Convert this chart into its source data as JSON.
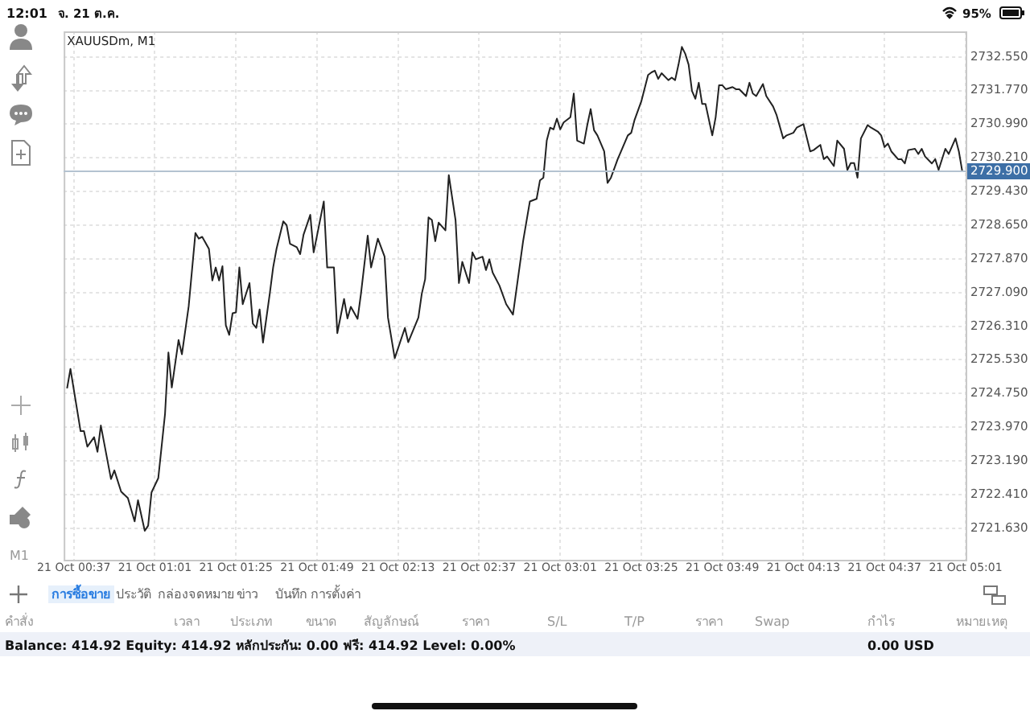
{
  "chart_data": {
    "type": "line",
    "title": "XAUUSDm, M1",
    "x": [
      "--10-21T00:35",
      "--10-21T00:36",
      "--10-21T00:39",
      "--10-21T00:40",
      "--10-21T00:41",
      "--10-21T00:43",
      "--10-21T00:44",
      "--10-21T00:45",
      "--10-21T00:48",
      "--10-21T00:49",
      "--10-21T00:51",
      "--10-21T00:53",
      "--10-21T00:55",
      "--10-21T00:56",
      "--10-21T00:58",
      "--10-21T00:59",
      "--10-21T01:00",
      "--10-21T01:02",
      "--10-21T01:04",
      "--10-21T01:05",
      "--10-21T01:06",
      "--10-21T01:08",
      "--10-21T01:09",
      "--10-21T01:11",
      "--10-21T01:13",
      "--10-21T01:14",
      "--10-21T01:15",
      "--10-21T01:17",
      "--10-21T01:18",
      "--10-21T01:19",
      "--10-21T01:20",
      "--10-21T01:21",
      "--10-21T01:22",
      "--10-21T01:23",
      "--10-21T01:24",
      "--10-21T01:25",
      "--10-21T01:26",
      "--10-21T01:27",
      "--10-21T01:29",
      "--10-21T01:30",
      "--10-21T01:31",
      "--10-21T01:32",
      "--10-21T01:33",
      "--10-21T01:35",
      "--10-21T01:36",
      "--10-21T01:37",
      "--10-21T01:39",
      "--10-21T01:40",
      "--10-21T01:41",
      "--10-21T01:43",
      "--10-21T01:44",
      "--10-21T01:45",
      "--10-21T01:47",
      "--10-21T01:48",
      "--10-21T01:51",
      "--10-21T01:52",
      "--10-21T01:54",
      "--10-21T01:55",
      "--10-21T01:57",
      "--10-21T01:58",
      "--10-21T01:59",
      "--10-21T02:01",
      "--10-21T02:02",
      "--10-21T02:04",
      "--10-21T02:05",
      "--10-21T02:07",
      "--10-21T02:09",
      "--10-21T02:10",
      "--10-21T02:12",
      "--10-21T02:15",
      "--10-21T02:16",
      "--10-21T02:19",
      "--10-21T02:20",
      "--10-21T02:21",
      "--10-21T02:22",
      "--10-21T02:23",
      "--10-21T02:24",
      "--10-21T02:25",
      "--10-21T02:27",
      "--10-21T02:28",
      "--10-21T02:30",
      "--10-21T02:31",
      "--10-21T02:32",
      "--10-21T02:34",
      "--10-21T02:35",
      "--10-21T02:36",
      "--10-21T02:38",
      "--10-21T02:39",
      "--10-21T02:40",
      "--10-21T02:41",
      "--10-21T02:43",
      "--10-21T02:45",
      "--10-21T02:47",
      "--10-21T02:50",
      "--10-21T02:52",
      "--10-21T02:54",
      "--10-21T02:55",
      "--10-21T02:56",
      "--10-21T02:57",
      "--10-21T02:58",
      "--10-21T02:59",
      "--10-21T03:00",
      "--10-21T03:01",
      "--10-21T03:02",
      "--10-21T03:04",
      "--10-21T03:05",
      "--10-21T03:06",
      "--10-21T03:08",
      "--10-21T03:09",
      "--10-21T03:10",
      "--10-21T03:11",
      "--10-21T03:12",
      "--10-21T03:14",
      "--10-21T03:15",
      "--10-21T03:16",
      "--10-21T03:18",
      "--10-21T03:19",
      "--10-21T03:21",
      "--10-21T03:22",
      "--10-21T03:23",
      "--10-21T03:25",
      "--10-21T03:27",
      "--10-21T03:28",
      "--10-21T03:29",
      "--10-21T03:30",
      "--10-21T03:31",
      "--10-21T03:33",
      "--10-21T03:34",
      "--10-21T03:35",
      "--10-21T03:36",
      "--10-21T03:37",
      "--10-21T03:38",
      "--10-21T03:39",
      "--10-21T03:40",
      "--10-21T03:41",
      "--10-21T03:42",
      "--10-21T03:43",
      "--10-21T03:44",
      "--10-21T03:46",
      "--10-21T03:47",
      "--10-21T03:48",
      "--10-21T03:49",
      "--10-21T03:50",
      "--10-21T03:52",
      "--10-21T03:53",
      "--10-21T03:54",
      "--10-21T03:56",
      "--10-21T03:57",
      "--10-21T03:58",
      "--10-21T03:59",
      "--10-21T04:01",
      "--10-21T04:02",
      "--10-21T04:04",
      "--10-21T04:05",
      "--10-21T04:07",
      "--10-21T04:08",
      "--10-21T04:10",
      "--10-21T04:11",
      "--10-21T04:13",
      "--10-21T04:15",
      "--10-21T04:16",
      "--10-21T04:18",
      "--10-21T04:19",
      "--10-21T04:20",
      "--10-21T04:22",
      "--10-21T04:23",
      "--10-21T04:25",
      "--10-21T04:26",
      "--10-21T04:27",
      "--10-21T04:28",
      "--10-21T04:29",
      "--10-21T04:30",
      "--10-21T04:32",
      "--10-21T04:33",
      "--10-21T04:35",
      "--10-21T04:36",
      "--10-21T04:37",
      "--10-21T04:38",
      "--10-21T04:39",
      "--10-21T04:41",
      "--10-21T04:42",
      "--10-21T04:43",
      "--10-21T04:44",
      "--10-21T04:46",
      "--10-21T04:47",
      "--10-21T04:48",
      "--10-21T04:49",
      "--10-21T04:51",
      "--10-21T04:52",
      "--10-21T04:53",
      "--10-21T04:55",
      "--10-21T04:56",
      "--10-21T04:58",
      "--10-21T04:59",
      "--10-21T05:00"
    ],
    "series": [
      {
        "color": "#222222",
        "values": [
          2724.87,
          2725.32,
          2723.88,
          2723.88,
          2723.52,
          2723.74,
          2723.4,
          2724.01,
          2722.77,
          2722.97,
          2722.48,
          2722.33,
          2721.79,
          2722.28,
          2721.57,
          2721.69,
          2722.46,
          2722.79,
          2724.28,
          2725.7,
          2724.89,
          2725.99,
          2725.66,
          2726.77,
          2728.47,
          2728.34,
          2728.38,
          2728.1,
          2727.37,
          2727.67,
          2727.37,
          2727.7,
          2726.33,
          2726.11,
          2726.61,
          2726.63,
          2727.67,
          2726.82,
          2727.31,
          2726.37,
          2726.27,
          2726.7,
          2725.93,
          2727.06,
          2727.67,
          2728.1,
          2728.74,
          2728.65,
          2728.22,
          2728.14,
          2727.98,
          2728.43,
          2728.89,
          2728.02,
          2729.2,
          2727.67,
          2727.67,
          2726.15,
          2726.94,
          2726.49,
          2726.76,
          2726.48,
          2727.06,
          2728.41,
          2727.67,
          2728.34,
          2727.92,
          2726.51,
          2725.57,
          2726.27,
          2725.94,
          2726.51,
          2727.06,
          2727.4,
          2728.83,
          2728.77,
          2728.28,
          2728.71,
          2728.53,
          2729.81,
          2728.77,
          2727.31,
          2727.8,
          2727.31,
          2728.02,
          2727.86,
          2727.92,
          2727.61,
          2727.86,
          2727.55,
          2727.25,
          2726.82,
          2726.58,
          2728.28,
          2729.2,
          2729.26,
          2729.69,
          2729.75,
          2730.61,
          2730.91,
          2730.87,
          2731.12,
          2730.87,
          2731.03,
          2731.15,
          2731.7,
          2730.61,
          2730.54,
          2730.97,
          2731.34,
          2730.85,
          2730.73,
          2730.36,
          2729.63,
          2729.75,
          2730.18,
          2730.36,
          2730.73,
          2730.79,
          2731.09,
          2731.52,
          2732.13,
          2732.19,
          2732.23,
          2732.04,
          2732.17,
          2732.01,
          2732.07,
          2732.01,
          2732.37,
          2732.78,
          2732.62,
          2732.37,
          2731.76,
          2731.58,
          2731.95,
          2731.46,
          2731.46,
          2730.73,
          2731.15,
          2731.89,
          2731.89,
          2731.8,
          2731.85,
          2731.8,
          2731.8,
          2731.64,
          2731.95,
          2731.7,
          2731.64,
          2731.92,
          2731.64,
          2731.4,
          2731.21,
          2730.66,
          2730.73,
          2730.79,
          2730.91,
          2730.99,
          2730.36,
          2730.39,
          2730.51,
          2730.18,
          2730.24,
          2730.02,
          2730.61,
          2730.42,
          2729.93,
          2730.09,
          2730.09,
          2729.75,
          2730.66,
          2730.97,
          2730.91,
          2730.82,
          2730.73,
          2730.46,
          2730.54,
          2730.36,
          2730.18,
          2730.18,
          2730.08,
          2730.39,
          2730.42,
          2730.3,
          2730.42,
          2730.24,
          2730.08,
          2730.18,
          2729.93,
          2730.42,
          2730.3,
          2730.66,
          2730.36,
          2729.9
        ]
      }
    ],
    "xlim": [
      "--10-21T00:34",
      "--10-21T05:01"
    ],
    "xticks": [
      {
        "value": "--10-21T00:37",
        "label": "21 Oct 00:37"
      },
      {
        "value": "--10-21T01:01",
        "label": "21 Oct 01:01"
      },
      {
        "value": "--10-21T01:25",
        "label": "21 Oct 01:25"
      },
      {
        "value": "--10-21T01:49",
        "label": "21 Oct 01:49"
      },
      {
        "value": "--10-21T02:13",
        "label": "21 Oct 02:13"
      },
      {
        "value": "--10-21T02:37",
        "label": "21 Oct 02:37"
      },
      {
        "value": "--10-21T03:01",
        "label": "21 Oct 03:01"
      },
      {
        "value": "--10-21T03:25",
        "label": "21 Oct 03:25"
      },
      {
        "value": "--10-21T03:49",
        "label": "21 Oct 03:49"
      },
      {
        "value": "--10-21T04:13",
        "label": "21 Oct 04:13"
      },
      {
        "value": "--10-21T04:37",
        "label": "21 Oct 04:37"
      },
      {
        "value": "--10-21T05:01",
        "label": "21 Oct 05:01"
      }
    ],
    "ylim": [
      2720.9,
      2733.14
    ],
    "yticks": [
      {
        "value": 2721.63,
        "label": "2721.630"
      },
      {
        "value": 2722.41,
        "label": "2722.410"
      },
      {
        "value": 2723.19,
        "label": "2723.190"
      },
      {
        "value": 2723.97,
        "label": "2723.970"
      },
      {
        "value": 2724.75,
        "label": "2724.750"
      },
      {
        "value": 2725.53,
        "label": "2725.530"
      },
      {
        "value": 2726.31,
        "label": "2726.310"
      },
      {
        "value": 2727.09,
        "label": "2727.090"
      },
      {
        "value": 2727.87,
        "label": "2727.870"
      },
      {
        "value": 2728.65,
        "label": "2728.650"
      },
      {
        "value": 2729.43,
        "label": "2729.430"
      },
      {
        "value": 2730.21,
        "label": "2730.210"
      },
      {
        "value": 2730.99,
        "label": "2730.990"
      },
      {
        "value": 2731.77,
        "label": "2731.770"
      },
      {
        "value": 2732.55,
        "label": "2732.550"
      }
    ],
    "grid": true,
    "ref_lines": [
      {
        "axis": "y",
        "value": 2729.9,
        "label": "2729.900",
        "color": "#b4c2d0"
      }
    ],
    "annotations": [
      "12:01",
      "จ. 21 ต.ค.",
      "95%",
      "M1",
      "การซื้อขาย",
      "ประวัติ",
      "กล่องจดหมาย",
      "ข่าว",
      "บันทึก",
      "การตั้งค่า",
      "คำสั่ง",
      "เวลา",
      "ประเภท",
      "ขนาด",
      "สัญลักษณ์",
      "ราคา",
      "S/L",
      "T/P",
      "ราคา",
      "Swap",
      "กำไร",
      "หมายเหตุ",
      "Balance: 414.92 Equity: 414.92 หลักประกัน: 0.00 ฟรี: 414.92 Level: 0.00%",
      "0.00  USD"
    ]
  }
}
